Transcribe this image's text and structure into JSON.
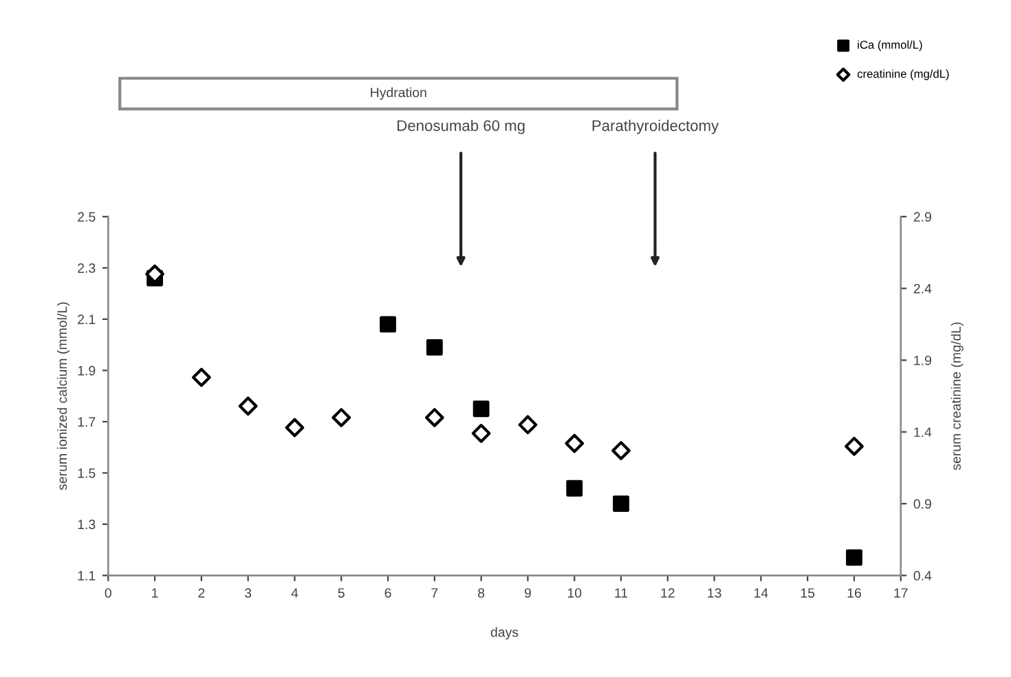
{
  "chart_data": {
    "type": "scatter",
    "xlabel": "days",
    "ylabel": "serum ionized calcium (mmol/L)",
    "y2label": "serum creatinine (mg/dL)",
    "xlim": [
      0,
      17
    ],
    "xticks": [
      0,
      1,
      2,
      3,
      4,
      5,
      6,
      7,
      8,
      9,
      10,
      11,
      12,
      13,
      14,
      15,
      16,
      17
    ],
    "ylim": [
      1.1,
      2.5
    ],
    "yticks": [
      1.1,
      1.3,
      1.5,
      1.7,
      1.9,
      2.1,
      2.3,
      2.5
    ],
    "y2lim": [
      0.4,
      2.9
    ],
    "y2ticks": [
      0.4,
      0.9,
      1.4,
      1.9,
      2.4,
      2.9
    ],
    "grid": false,
    "legend": "top right",
    "series": [
      {
        "name": "iCa (mmol/L)",
        "color": "#000000",
        "marker": "square",
        "x": [
          1,
          6,
          7,
          8,
          10,
          11,
          16
        ],
        "values": [
          2.26,
          2.08,
          1.99,
          1.75,
          1.44,
          1.38,
          1.17
        ]
      },
      {
        "name": "creatinine (mg/dL)",
        "color": "#000000",
        "marker": "diamond",
        "axis": "y2",
        "x": [
          1,
          2,
          3,
          4,
          5,
          7,
          8,
          9,
          10,
          11,
          16
        ],
        "values": [
          2.5,
          1.78,
          1.58,
          1.43,
          1.5,
          1.5,
          1.39,
          1.45,
          1.32,
          1.27,
          1.3
        ]
      }
    ],
    "annotations": [
      "Hydration",
      "Denosumab 60 mg",
      "Parathyroidectomy"
    ]
  }
}
